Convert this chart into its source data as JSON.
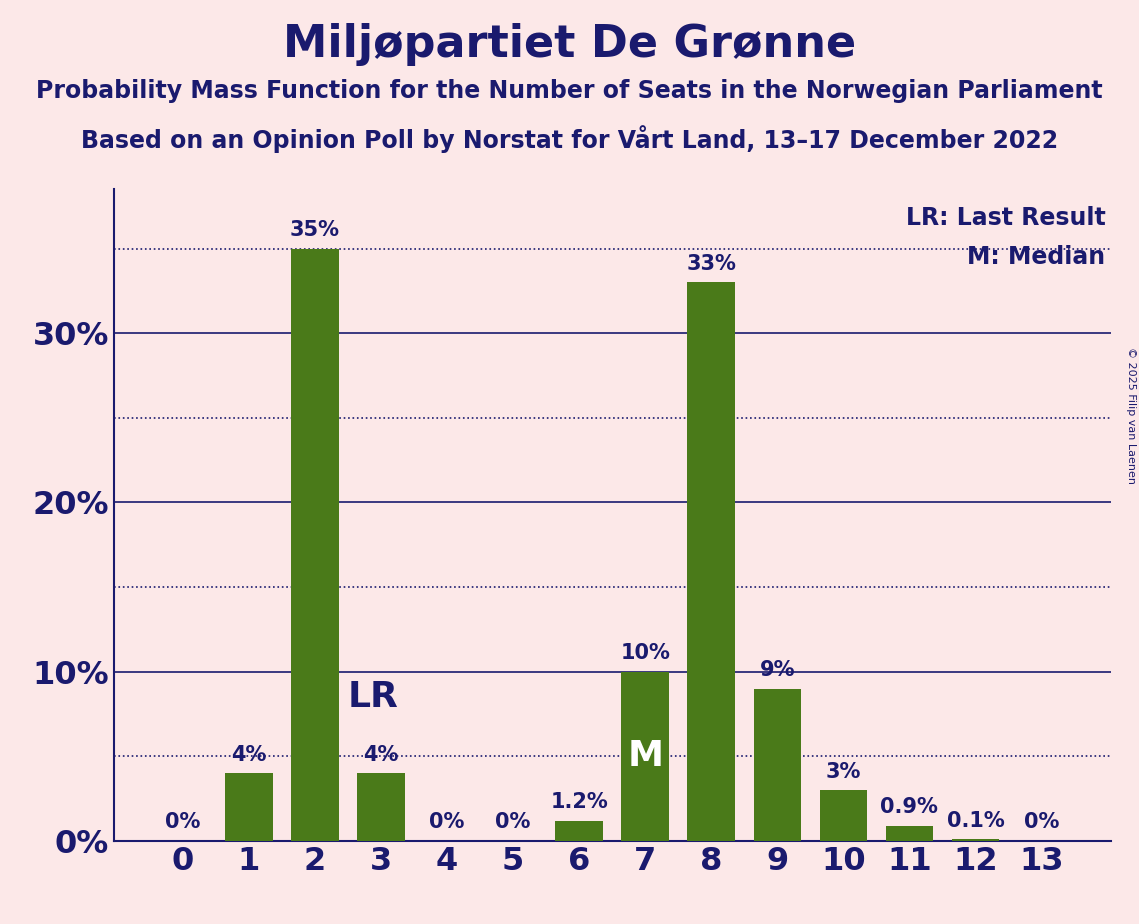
{
  "title": "Miljøpartiet De Grønne",
  "subtitle1": "Probability Mass Function for the Number of Seats in the Norwegian Parliament",
  "subtitle2": "Based on an Opinion Poll by Norstat for Vårt Land, 13–17 December 2022",
  "copyright": "© 2025 Filip van Laenen",
  "categories": [
    0,
    1,
    2,
    3,
    4,
    5,
    6,
    7,
    8,
    9,
    10,
    11,
    12,
    13
  ],
  "values": [
    0.0,
    4.0,
    35.0,
    4.0,
    0.0,
    0.0,
    1.2,
    10.0,
    33.0,
    9.0,
    3.0,
    0.9,
    0.1,
    0.0
  ],
  "bar_color": "#4a7a19",
  "background_color": "#fce8e8",
  "text_color": "#1a1a6e",
  "LR_seat": 2,
  "M_seat": 7,
  "ylim": [
    0,
    38.5
  ],
  "shown_yticks": [
    0,
    10,
    20,
    30
  ],
  "shown_ytick_labels": [
    "0%",
    "10%",
    "20%",
    "30%"
  ],
  "solid_gridlines": [
    10,
    20,
    30
  ],
  "dotted_gridlines": [
    5,
    15,
    25,
    35
  ],
  "bar_labels": [
    "0%",
    "4%",
    "35%",
    "4%",
    "0%",
    "0%",
    "1.2%",
    "10%",
    "33%",
    "9%",
    "3%",
    "0.9%",
    "0.1%",
    "0%"
  ]
}
